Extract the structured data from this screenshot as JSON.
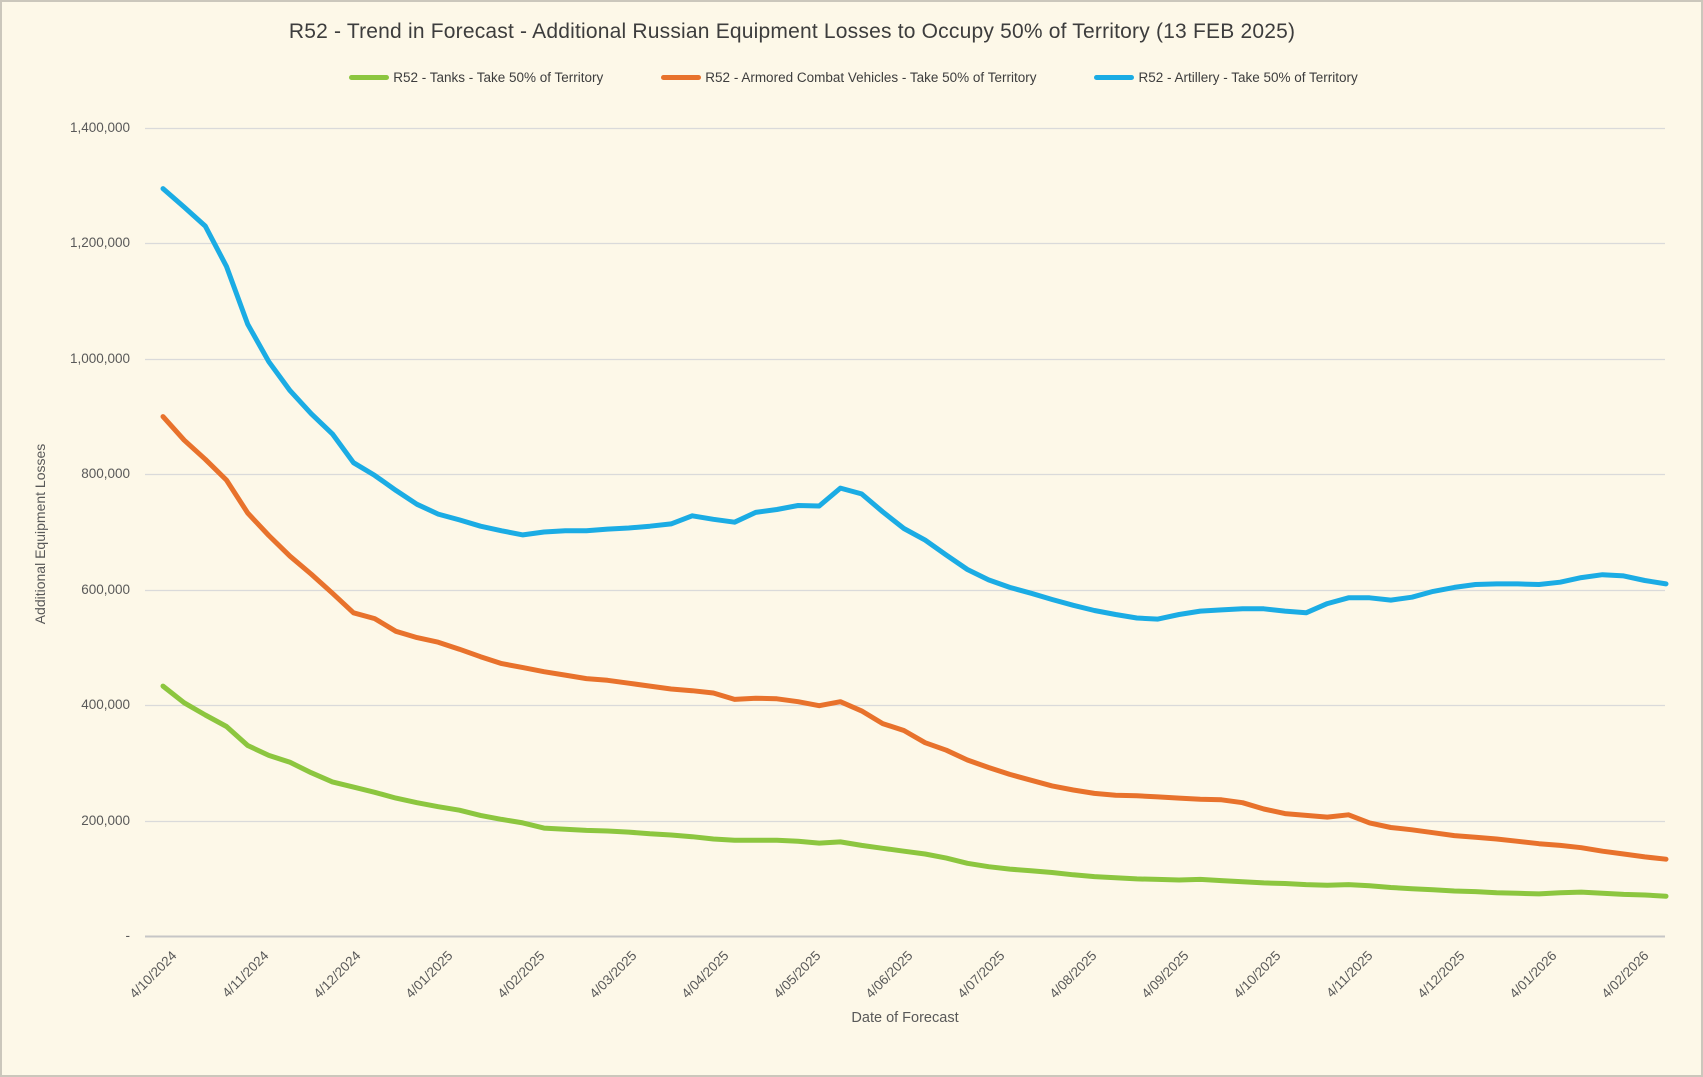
{
  "title": "R52 - Trend in Forecast - Additional Russian Equipment Losses to Occupy 50% of Territory (13 FEB 2025)",
  "axes": {
    "x_title": "Date of Forecast",
    "y_title": "Additional Equipment Losses"
  },
  "legend": [
    {
      "label": "R52 - Tanks - Take 50% of Territory",
      "color": "#8CC63F"
    },
    {
      "label": "R52 - Armored Combat Vehicles - Take 50% of Territory",
      "color": "#E8722C"
    },
    {
      "label": "R52 - Artillery - Take 50% of Territory",
      "color": "#1BACE4"
    }
  ],
  "colors": {
    "background": "#FDF8E8",
    "gridline": "#DADADA",
    "axis_line": "#C6C6C6",
    "text": "#595959",
    "title_text": "#3D3D3D"
  },
  "chart_data": {
    "type": "line",
    "title": "R52 - Trend in Forecast - Additional Russian Equipment Losses to Occupy 50% of Territory (13 FEB 2025)",
    "xlabel": "Date of Forecast",
    "ylabel": "Additional Equipment Losses",
    "ylim": [
      0,
      1400000
    ],
    "grid": true,
    "legend_position": "top",
    "sampling": "weekly points between monthly axis labels",
    "y_tick_labels": [
      "-",
      "200,000",
      "400,000",
      "600,000",
      "800,000",
      "1,000,000",
      "1,200,000",
      "1,400,000"
    ],
    "x_tick_labels": [
      "4/10/2024",
      "4/11/2024",
      "4/12/2024",
      "4/01/2025",
      "4/02/2025",
      "4/03/2025",
      "4/04/2025",
      "4/05/2025",
      "4/06/2025",
      "4/07/2025",
      "4/08/2025",
      "4/09/2025",
      "4/10/2025",
      "4/11/2025",
      "4/12/2025",
      "4/01/2026",
      "4/02/2026"
    ],
    "series": [
      {
        "name": "R52 - Tanks - Take 50% of Territory",
        "color": "#8CC63F",
        "values": [
          433000,
          404000,
          383000,
          363000,
          330000,
          313000,
          301000,
          283000,
          267000,
          258000,
          249000,
          239000,
          231000,
          224000,
          218000,
          209000,
          202000,
          196000,
          187000,
          185000,
          183000,
          182000,
          180000,
          177000,
          175000,
          172000,
          168000,
          166000,
          166000,
          166000,
          164000,
          161000,
          163000,
          157000,
          152000,
          147000,
          142000,
          135000,
          126000,
          120000,
          116000,
          113000,
          110000,
          106000,
          103000,
          101000,
          99000,
          98000,
          97000,
          98000,
          96000,
          94000,
          92000,
          91000,
          89000,
          88000,
          89000,
          87000,
          84000,
          82000,
          80000,
          78000,
          77000,
          75000,
          74000,
          73000,
          75000,
          76000,
          74000,
          72000,
          71000,
          69000
        ]
      },
      {
        "name": "R52 - Armored Combat Vehicles - Take 50% of Territory",
        "color": "#E8722C",
        "values": [
          900000,
          859000,
          826000,
          790000,
          733000,
          694000,
          658000,
          627000,
          594000,
          560000,
          550000,
          528000,
          517000,
          509000,
          497000,
          484000,
          472000,
          465000,
          458000,
          452000,
          446000,
          443000,
          438000,
          433000,
          428000,
          425000,
          421000,
          410000,
          412000,
          411000,
          406000,
          399000,
          406000,
          390000,
          368000,
          356000,
          335000,
          322000,
          305000,
          292000,
          280000,
          270000,
          260000,
          253000,
          247000,
          244000,
          243000,
          241000,
          239000,
          237000,
          236000,
          231000,
          220000,
          212000,
          209000,
          206000,
          210000,
          196000,
          188000,
          184000,
          179000,
          174000,
          171000,
          168000,
          164000,
          160000,
          157000,
          153000,
          147000,
          142000,
          137000,
          133000
        ]
      },
      {
        "name": "R52 - Artillery - Take 50% of Territory",
        "color": "#1BACE4",
        "values": [
          1295000,
          1263000,
          1230000,
          1160000,
          1060000,
          995000,
          945000,
          905000,
          870000,
          820000,
          798000,
          772000,
          748000,
          731000,
          721000,
          710000,
          702000,
          695000,
          700000,
          702000,
          702000,
          705000,
          707000,
          710000,
          714000,
          728000,
          722000,
          717000,
          734000,
          739000,
          746000,
          745000,
          776000,
          766000,
          735000,
          706000,
          686000,
          660000,
          635000,
          617000,
          604000,
          594000,
          583000,
          573000,
          564000,
          557000,
          551000,
          549000,
          557000,
          563000,
          565000,
          567000,
          567000,
          563000,
          560000,
          576000,
          586000,
          586000,
          582000,
          587000,
          597000,
          604000,
          609000,
          610000,
          610000,
          609000,
          613000,
          621000,
          626000,
          624000,
          616000,
          610000
        ]
      }
    ]
  }
}
